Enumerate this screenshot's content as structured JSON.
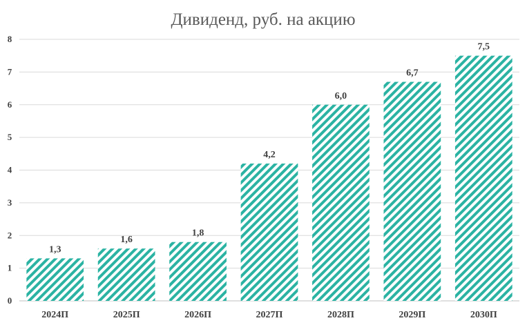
{
  "chart_data": {
    "type": "bar",
    "title": "Дивиденд, руб. на акцию",
    "xlabel": "",
    "ylabel": "",
    "categories": [
      "2024П",
      "2025П",
      "2026П",
      "2027П",
      "2028П",
      "2029П",
      "2030П"
    ],
    "values": [
      1.3,
      1.6,
      1.8,
      4.2,
      6.0,
      6.7,
      7.5
    ],
    "data_labels": [
      "1,3",
      "1,6",
      "1,8",
      "4,2",
      "6,0",
      "6,7",
      "7,5"
    ],
    "yticks": [
      "0",
      "1",
      "2",
      "3",
      "4",
      "5",
      "6",
      "7",
      "8"
    ],
    "ylim": [
      0,
      8
    ],
    "grid": true,
    "legend": "none",
    "bar_fill": "diagonal-hatch",
    "bar_color": "#2bb3a3"
  }
}
